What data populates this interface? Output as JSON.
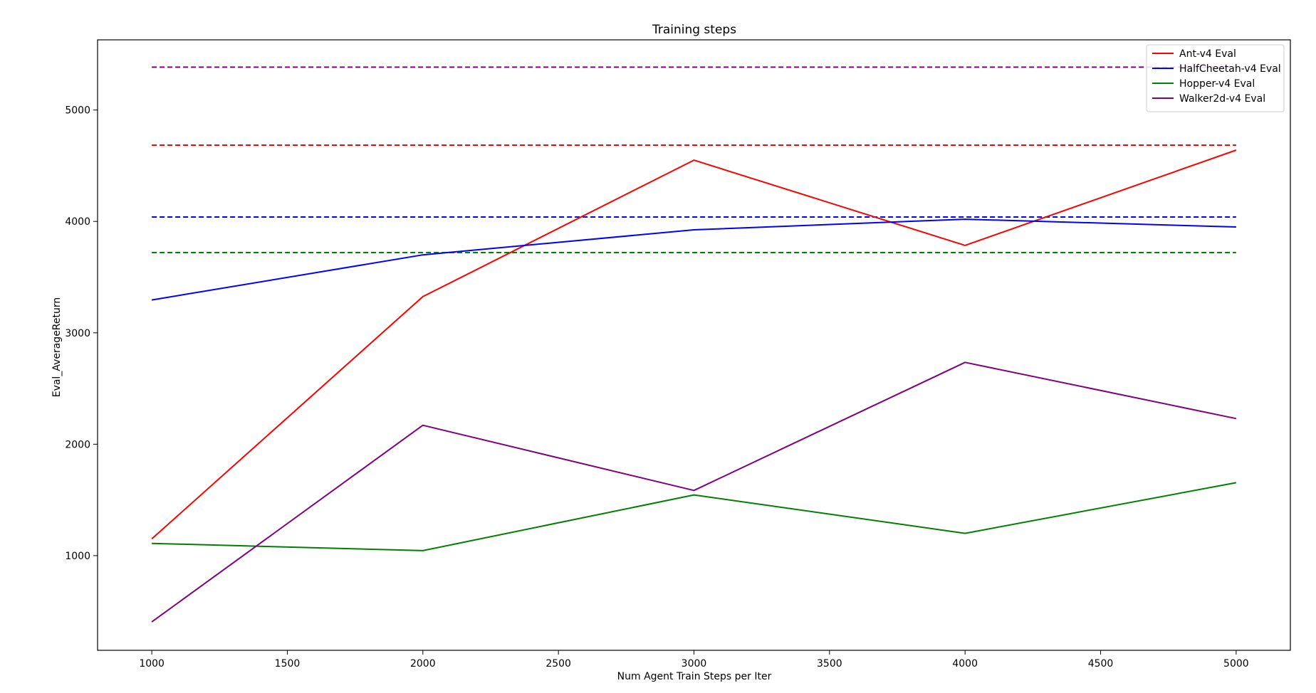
{
  "chart_data": {
    "type": "line",
    "title": "Training steps",
    "xlabel": "Num Agent Train Steps per Iter",
    "ylabel": "Eval_AverageReturn",
    "x": [
      1000,
      2000,
      3000,
      4000,
      5000
    ],
    "xlim": [
      800,
      5200
    ],
    "ylim": [
      150,
      5630
    ],
    "xticks": [
      1000,
      1500,
      2000,
      2500,
      3000,
      3500,
      4000,
      4500,
      5000
    ],
    "yticks": [
      1000,
      2000,
      3000,
      4000,
      5000
    ],
    "grid": false,
    "legend_position": "top-right",
    "series": [
      {
        "name": "Ant-v4 Eval",
        "color": "#ff0000",
        "values": [
          1150,
          3325,
          4550,
          3785,
          4640
        ]
      },
      {
        "name": "HalfCheetah-v4 Eval",
        "color": "#0000ff",
        "values": [
          3295,
          3700,
          3925,
          4020,
          3950
        ]
      },
      {
        "name": "Hopper-v4 Eval",
        "color": "#008000",
        "values": [
          1110,
          1045,
          1545,
          1200,
          1655
        ]
      },
      {
        "name": "Walker2d-v4 Eval",
        "color": "#800080",
        "values": [
          405,
          2170,
          1585,
          2735,
          2230
        ]
      }
    ],
    "reference_lines": [
      {
        "color": "#800080",
        "style": "dashed",
        "value": 5385
      },
      {
        "color": "#ff0000",
        "style": "dashed",
        "value": 4685
      },
      {
        "color": "#0000ff",
        "style": "dashed",
        "value": 4040
      },
      {
        "color": "#008000",
        "style": "dashed",
        "value": 3720
      }
    ]
  }
}
